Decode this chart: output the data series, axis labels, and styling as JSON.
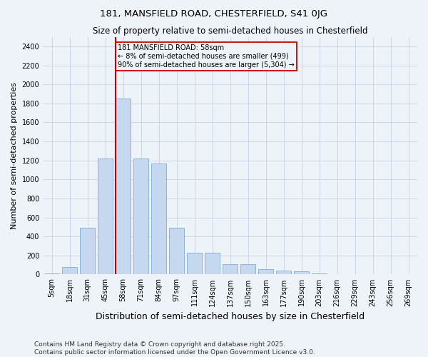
{
  "title1": "181, MANSFIELD ROAD, CHESTERFIELD, S41 0JG",
  "title2": "Size of property relative to semi-detached houses in Chesterfield",
  "xlabel": "Distribution of semi-detached houses by size in Chesterfield",
  "ylabel": "Number of semi-detached properties",
  "categories": [
    "5sqm",
    "18sqm",
    "31sqm",
    "45sqm",
    "58sqm",
    "71sqm",
    "84sqm",
    "97sqm",
    "111sqm",
    "124sqm",
    "137sqm",
    "150sqm",
    "163sqm",
    "177sqm",
    "190sqm",
    "203sqm",
    "216sqm",
    "229sqm",
    "243sqm",
    "256sqm",
    "269sqm"
  ],
  "values": [
    10,
    80,
    490,
    1220,
    1850,
    1220,
    1170,
    490,
    230,
    230,
    110,
    110,
    55,
    40,
    30,
    10,
    0,
    0,
    0,
    0,
    0
  ],
  "bar_color": "#c5d8f0",
  "bar_edge_color": "#7aaed6",
  "vline_index": 4,
  "vline_color": "#cc0000",
  "annotation_title": "181 MANSFIELD ROAD: 58sqm",
  "annotation_line1": "← 8% of semi-detached houses are smaller (499)",
  "annotation_line2": "90% of semi-detached houses are larger (5,304) →",
  "annotation_box_color": "#cc0000",
  "ylim": [
    0,
    2500
  ],
  "yticks": [
    0,
    200,
    400,
    600,
    800,
    1000,
    1200,
    1400,
    1600,
    1800,
    2000,
    2200,
    2400
  ],
  "footer1": "Contains HM Land Registry data © Crown copyright and database right 2025.",
  "footer2": "Contains public sector information licensed under the Open Government Licence v3.0.",
  "bg_color": "#eef2f9",
  "title_fontsize": 9.5,
  "subtitle_fontsize": 8.5,
  "ylabel_fontsize": 8,
  "xlabel_fontsize": 9,
  "tick_fontsize": 7,
  "footer_fontsize": 6.5
}
